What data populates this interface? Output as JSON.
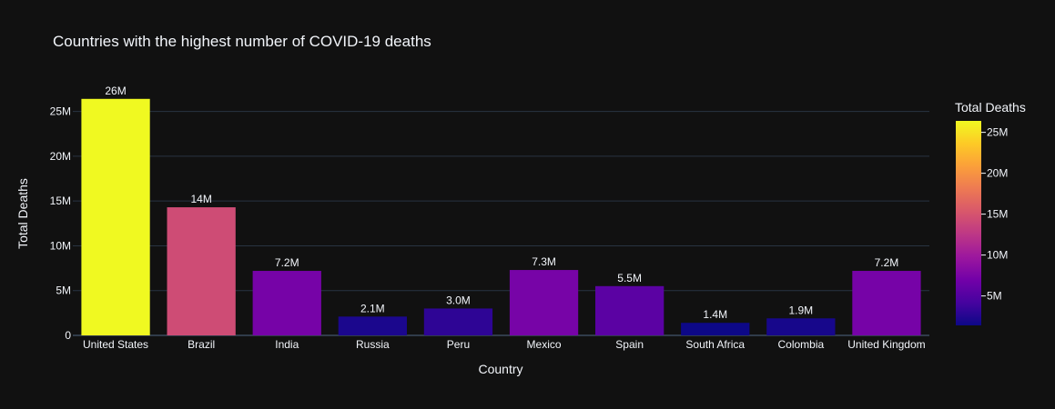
{
  "chart_data": {
    "type": "bar",
    "title": "Countries with the highest number of COVID-19 deaths",
    "xlabel": "Country",
    "ylabel": "Total Deaths",
    "categories": [
      "United States",
      "Brazil",
      "India",
      "Russia",
      "Peru",
      "Mexico",
      "Spain",
      "South Africa",
      "Colombia",
      "United Kingdom"
    ],
    "values": [
      26400000,
      14300000,
      7200000,
      2100000,
      3000000,
      7300000,
      5500000,
      1400000,
      1900000,
      7200000
    ],
    "data_labels": [
      "26M",
      "14M",
      "7.2M",
      "2.1M",
      "3.0M",
      "7.3M",
      "5.5M",
      "1.4M",
      "1.9M",
      "7.2M"
    ],
    "ylim": [
      0,
      27800000
    ],
    "yticks": [
      0,
      5000000,
      10000000,
      15000000,
      20000000,
      25000000
    ],
    "ytick_labels": [
      "0",
      "5M",
      "10M",
      "15M",
      "20M",
      "25M"
    ],
    "grid": true,
    "colorscale": {
      "title": "Total Deaths",
      "name": "plasma",
      "range": [
        1400000,
        26400000
      ],
      "ticks": [
        5000000,
        10000000,
        15000000,
        20000000,
        25000000
      ],
      "tick_labels": [
        "5M",
        "10M",
        "15M",
        "20M",
        "25M"
      ],
      "colors": [
        "#0d0887",
        "#46039f",
        "#7201a8",
        "#9c179e",
        "#bd3786",
        "#d8576b",
        "#ed7953",
        "#fb9f3a",
        "#fdca26",
        "#f0f921"
      ]
    },
    "colors": {
      "background": "#111111",
      "grid": "#283442",
      "text": "#f2f5fa",
      "tick_text": "#f2f5fa"
    }
  }
}
